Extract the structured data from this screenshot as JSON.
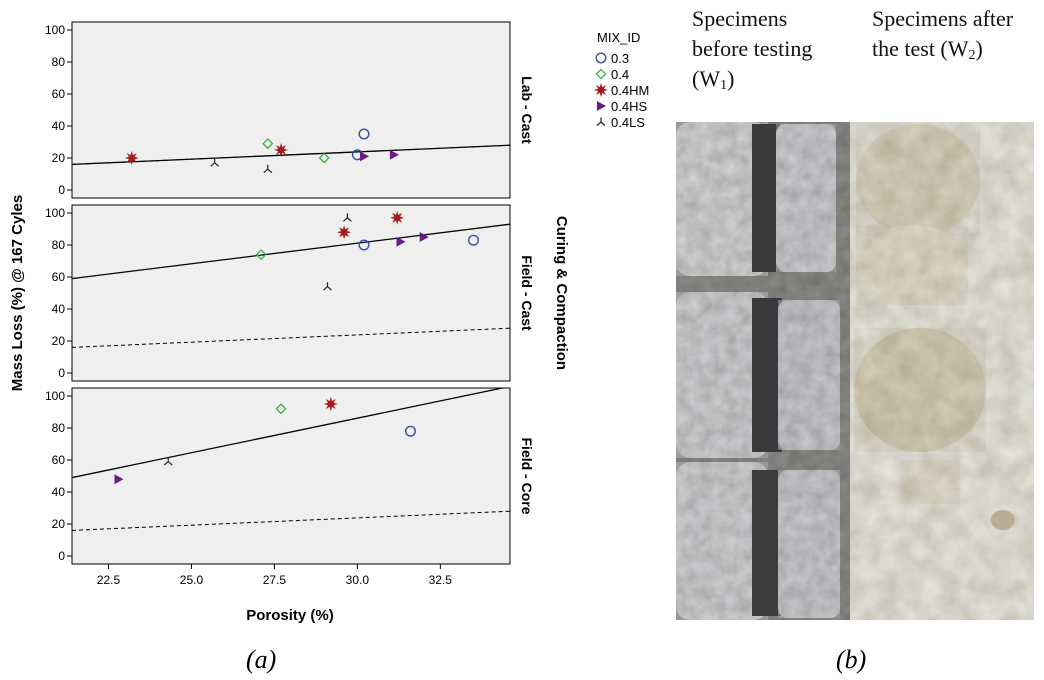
{
  "chart_data": {
    "type": "scatter",
    "xlabel": "Porosity (%)",
    "ylabel": "Mass Loss (%) @ 167 Cyles",
    "facet_title": "Curing & Compaction",
    "xlim": [
      21.4,
      34.6
    ],
    "x_ticks": [
      "22.5",
      "25.0",
      "27.5",
      "30.0",
      "32.5"
    ],
    "x_tick_values": [
      22.5,
      25.0,
      27.5,
      30.0,
      32.5
    ],
    "ylim": [
      -5,
      105
    ],
    "y_ticks": [
      "0",
      "20",
      "40",
      "60",
      "80",
      "100"
    ],
    "y_tick_values": [
      0,
      20,
      40,
      60,
      80,
      100
    ],
    "panel_background": "#efefef",
    "legend": {
      "title": "MIX_ID",
      "position": "top-right, outside plot",
      "entries": [
        {
          "label": "0.3",
          "marker": "open-circle",
          "color": "#3a4fa0"
        },
        {
          "label": "0.4",
          "marker": "open-diamond",
          "color": "#3cb043"
        },
        {
          "label": "0.4HM",
          "marker": "star",
          "color": "#a51b1b"
        },
        {
          "label": "0.4HS",
          "marker": "triangle-right",
          "color": "#6a1b8a"
        },
        {
          "label": "0.4LS",
          "marker": "tripod",
          "color": "#222222"
        }
      ]
    },
    "panels": [
      {
        "label": "Lab - Cast",
        "points": [
          {
            "mix": "0.3",
            "x": 30.0,
            "y": 22
          },
          {
            "mix": "0.3",
            "x": 30.2,
            "y": 35
          },
          {
            "mix": "0.4",
            "x": 27.3,
            "y": 29
          },
          {
            "mix": "0.4",
            "x": 29.0,
            "y": 20
          },
          {
            "mix": "0.4HM",
            "x": 23.2,
            "y": 20
          },
          {
            "mix": "0.4HM",
            "x": 27.7,
            "y": 25
          },
          {
            "mix": "0.4HS",
            "x": 30.2,
            "y": 21
          },
          {
            "mix": "0.4HS",
            "x": 31.1,
            "y": 22
          },
          {
            "mix": "0.4LS",
            "x": 25.7,
            "y": 17
          },
          {
            "mix": "0.4LS",
            "x": 27.3,
            "y": 13
          }
        ],
        "fit_line": {
          "y_at_xmin": 16,
          "y_at_xmax": 28
        },
        "reference_line": {
          "y_at_xmin": 16,
          "y_at_xmax": 28
        }
      },
      {
        "label": "Field - Cast",
        "points": [
          {
            "mix": "0.3",
            "x": 30.2,
            "y": 80
          },
          {
            "mix": "0.3",
            "x": 33.5,
            "y": 83
          },
          {
            "mix": "0.4",
            "x": 27.1,
            "y": 74
          },
          {
            "mix": "0.4HM",
            "x": 29.6,
            "y": 88
          },
          {
            "mix": "0.4HM",
            "x": 31.2,
            "y": 97
          },
          {
            "mix": "0.4HS",
            "x": 31.3,
            "y": 82
          },
          {
            "mix": "0.4HS",
            "x": 32.0,
            "y": 85
          },
          {
            "mix": "0.4LS",
            "x": 29.1,
            "y": 54
          },
          {
            "mix": "0.4LS",
            "x": 29.7,
            "y": 97
          }
        ],
        "fit_line": {
          "y_at_xmin": 59,
          "y_at_xmax": 93
        },
        "reference_line": {
          "y_at_xmin": 16,
          "y_at_xmax": 28
        }
      },
      {
        "label": "Field - Core",
        "points": [
          {
            "mix": "0.3",
            "x": 31.6,
            "y": 78
          },
          {
            "mix": "0.4",
            "x": 27.7,
            "y": 92
          },
          {
            "mix": "0.4HM",
            "x": 29.2,
            "y": 95
          },
          {
            "mix": "0.4HS",
            "x": 22.8,
            "y": 48
          },
          {
            "mix": "0.4LS",
            "x": 24.3,
            "y": 59
          }
        ],
        "fit_line": {
          "y_at_xmin": 49,
          "y_at_xmax": 106
        },
        "reference_line": {
          "y_at_xmin": 16,
          "y_at_xmax": 28
        }
      }
    ]
  },
  "photo": {
    "caption_before_line1": "Specimens",
    "caption_before_line2": "before testing",
    "caption_before_line3": "(W",
    "caption_before_sub": "1",
    "caption_before_close": ")",
    "caption_after_line1": "Specimens after",
    "caption_after_line2": "the test (W",
    "caption_after_sub": "2",
    "caption_after_close": ")"
  },
  "subfigure_labels": {
    "a": "(a)",
    "b": "(b)"
  }
}
